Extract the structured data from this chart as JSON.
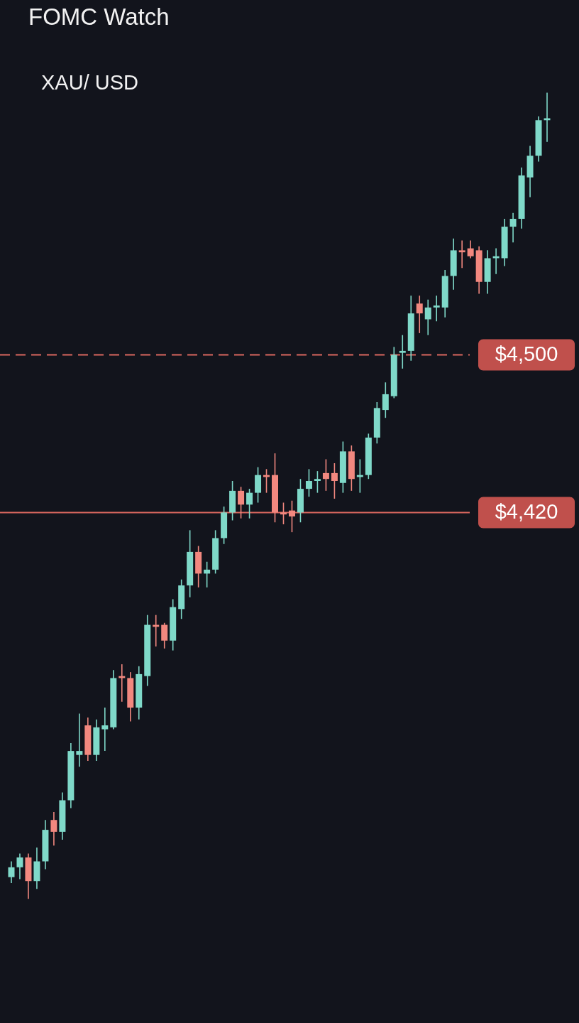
{
  "chart_data": {
    "type": "candlestick",
    "title": "FOMC Watch",
    "subtitle": "XAU/ USD",
    "categories": [
      null,
      null,
      null,
      null,
      null,
      null,
      null,
      null,
      null,
      null,
      null,
      null,
      null,
      null,
      null,
      null,
      null,
      null,
      null,
      null,
      null,
      null,
      null,
      null,
      null,
      null,
      null,
      null,
      null,
      null,
      null,
      null,
      null,
      null,
      null,
      null,
      null,
      null,
      null,
      null,
      null,
      null,
      null,
      null,
      null,
      null,
      null,
      null,
      null,
      null,
      null,
      null,
      null,
      null,
      null,
      null,
      null,
      null,
      null,
      null,
      null,
      null,
      null,
      null
    ],
    "ohlc": [
      [
        4235,
        4243,
        4232,
        4240
      ],
      [
        4240,
        4247,
        4234,
        4245
      ],
      [
        4245,
        4247,
        4224,
        4233
      ],
      [
        4233,
        4250,
        4229,
        4243
      ],
      [
        4243,
        4264,
        4239,
        4259
      ],
      [
        4264,
        4268,
        4251,
        4258
      ],
      [
        4258,
        4278,
        4254,
        4274
      ],
      [
        4274,
        4303,
        4270,
        4299
      ],
      [
        4297,
        4318,
        4291,
        4299
      ],
      [
        4312,
        4316,
        4294,
        4297
      ],
      [
        4297,
        4315,
        4294,
        4311
      ],
      [
        4310,
        4321,
        4299,
        4312
      ],
      [
        4311,
        4340,
        4310,
        4336
      ],
      [
        4337,
        4343,
        4324,
        4336
      ],
      [
        4336,
        4339,
        4314,
        4321
      ],
      [
        4321,
        4342,
        4315,
        4338
      ],
      [
        4337,
        4368,
        4332,
        4363
      ],
      [
        4363,
        4368,
        4352,
        4362
      ],
      [
        4363,
        4364,
        4351,
        4355
      ],
      [
        4355,
        4376,
        4350,
        4372
      ],
      [
        4371,
        4386,
        4366,
        4383
      ],
      [
        4383,
        4411,
        4377,
        4400
      ],
      [
        4400,
        4403,
        4382,
        4389
      ],
      [
        4389,
        4395,
        4382,
        4391
      ],
      [
        4391,
        4411,
        4389,
        4407
      ],
      [
        4407,
        4423,
        4404,
        4420
      ],
      [
        4420,
        4436,
        4416,
        4431
      ],
      [
        4431,
        4433,
        4417,
        4424
      ],
      [
        4424,
        4432,
        4417,
        4430
      ],
      [
        4430,
        4443,
        4425,
        4439
      ],
      [
        4439,
        4442,
        4430,
        4438
      ],
      [
        4439,
        4450,
        4415,
        4420
      ],
      [
        4420,
        4425,
        4414,
        4419
      ],
      [
        4421,
        4426,
        4410,
        4418
      ],
      [
        4420,
        4437,
        4415,
        4432
      ],
      [
        4432,
        4442,
        4428,
        4436
      ],
      [
        4436,
        4441,
        4430,
        4437
      ],
      [
        4440,
        4447,
        4431,
        4437
      ],
      [
        4440,
        4445,
        4427,
        4436
      ],
      [
        4435,
        4456,
        4430,
        4451
      ],
      [
        4451,
        4454,
        4431,
        4437
      ],
      [
        4438,
        4447,
        4430,
        4439
      ],
      [
        4439,
        4460,
        4437,
        4458
      ],
      [
        4458,
        4476,
        4455,
        4473
      ],
      [
        4472,
        4486,
        4468,
        4480
      ],
      [
        4479,
        4504,
        4478,
        4500
      ],
      [
        4501,
        4510,
        4493,
        4502
      ],
      [
        4502,
        4530,
        4497,
        4521
      ],
      [
        4526,
        4530,
        4511,
        4521
      ],
      [
        4518,
        4528,
        4510,
        4524
      ],
      [
        4524,
        4530,
        4517,
        4525
      ],
      [
        4524,
        4543,
        4519,
        4540
      ],
      [
        4540,
        4559,
        4533,
        4553
      ],
      [
        4553,
        4558,
        4544,
        4552
      ],
      [
        4554,
        4558,
        4549,
        4550
      ],
      [
        4553,
        4555,
        4531,
        4537
      ],
      [
        4537,
        4553,
        4531,
        4549
      ],
      [
        4549,
        4554,
        4541,
        4550
      ],
      [
        4549,
        4569,
        4545,
        4565
      ],
      [
        4565,
        4572,
        4557,
        4569
      ],
      [
        4569,
        4595,
        4564,
        4591
      ],
      [
        4590,
        4606,
        4580,
        4601
      ],
      [
        4601,
        4621,
        4598,
        4619
      ],
      [
        4619,
        4633,
        4608,
        4620
      ]
    ],
    "colors": [
      "#7fd9c9",
      "#7fd9c9",
      "#f2887f",
      "#7fd9c9",
      "#7fd9c9",
      "#f2887f",
      "#7fd9c9",
      "#7fd9c9",
      "#7fd9c9",
      "#f2887f",
      "#7fd9c9",
      "#7fd9c9",
      "#7fd9c9",
      "#f2887f",
      "#f2887f",
      "#7fd9c9",
      "#7fd9c9",
      "#f2887f",
      "#f2887f",
      "#7fd9c9",
      "#7fd9c9",
      "#7fd9c9",
      "#f2887f",
      "#7fd9c9",
      "#7fd9c9",
      "#7fd9c9",
      "#7fd9c9",
      "#f2887f",
      "#7fd9c9",
      "#7fd9c9",
      "#f2887f",
      "#f2887f",
      "#f2887f",
      "#f2887f",
      "#7fd9c9",
      "#7fd9c9",
      "#7fd9c9",
      "#f2887f",
      "#f2887f",
      "#7fd9c9",
      "#f2887f",
      "#7fd9c9",
      "#7fd9c9",
      "#7fd9c9",
      "#7fd9c9",
      "#7fd9c9",
      "#7fd9c9",
      "#7fd9c9",
      "#f2887f",
      "#7fd9c9",
      "#7fd9c9",
      "#7fd9c9",
      "#7fd9c9",
      "#f2887f",
      "#f2887f",
      "#f2887f",
      "#7fd9c9",
      "#7fd9c9",
      "#7fd9c9",
      "#7fd9c9",
      "#7fd9c9",
      "#7fd9c9",
      "#7fd9c9",
      "#7fd9c9"
    ],
    "ylim": [
      4161,
      4680
    ],
    "ref_lines": [
      {
        "axis": "y",
        "value": 4500,
        "label": "$4,500",
        "color": "#d9675e",
        "line_style": "dashed"
      },
      {
        "axis": "y",
        "value": 4420,
        "label": "$4,420",
        "color": "#d9675e",
        "line_style": "solid"
      }
    ]
  }
}
